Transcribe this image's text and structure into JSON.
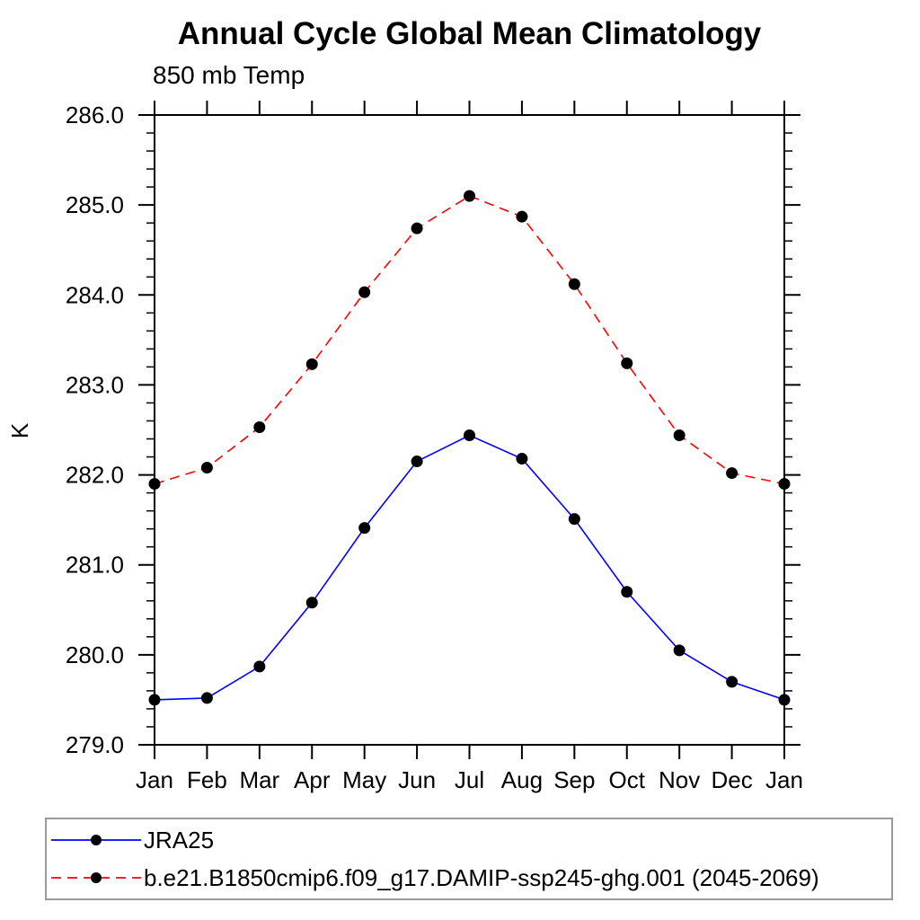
{
  "chart_data": {
    "type": "line",
    "title": "Annual Cycle Global Mean Climatology",
    "subtitle": "850 mb Temp",
    "ylabel": "K",
    "xlabel": "",
    "categories": [
      "Jan",
      "Feb",
      "Mar",
      "Apr",
      "May",
      "Jun",
      "Jul",
      "Aug",
      "Sep",
      "Oct",
      "Nov",
      "Dec",
      "Jan"
    ],
    "ylim": [
      279.0,
      286.0
    ],
    "ytick_major": 1.0,
    "ytick_minor": 0.2,
    "ytick_labels": [
      "279.0",
      "280.0",
      "281.0",
      "282.0",
      "283.0",
      "284.0",
      "285.0",
      "286.0"
    ],
    "grid": false,
    "legend_position": "bottom-left boxed",
    "axis_color": "#000000",
    "legend_border_color": "#9a9a9a",
    "series": [
      {
        "name": "JRA25",
        "color": "#0000ff",
        "style": "solid",
        "marker": "circle",
        "marker_color": "#000000",
        "values": [
          279.5,
          279.52,
          279.87,
          280.58,
          281.41,
          282.15,
          282.44,
          282.18,
          281.51,
          280.7,
          280.05,
          279.7,
          279.5
        ]
      },
      {
        "name": "b.e21.B1850cmip6.f09_g17.DAMIP-ssp245-ghg.001 (2045-2069)",
        "color": "#ff0000",
        "style": "dashed",
        "marker": "circle",
        "marker_color": "#000000",
        "values": [
          281.9,
          282.08,
          282.53,
          283.23,
          284.03,
          284.74,
          285.1,
          284.87,
          284.12,
          283.24,
          282.44,
          282.02,
          281.9
        ]
      }
    ]
  }
}
